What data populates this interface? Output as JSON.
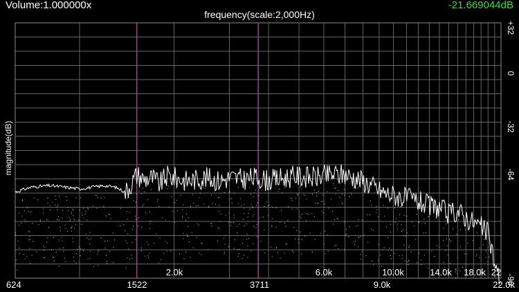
{
  "header": {
    "volume": "Volume:1.000000x",
    "db_readout": "-21.669044dB",
    "freq_title": "frequency(scale:2,000Hz)",
    "magnitude_label": "magnitude(dB)"
  },
  "colors": {
    "background": "#000000",
    "grid": "#8a8a8a",
    "trace": "#ffffff",
    "marker": "#b03a9a",
    "db_readout": "#3fdc3f"
  },
  "y_axis": {
    "labels": [
      "+32",
      "0",
      "-32",
      "-64",
      "-96"
    ]
  },
  "inner_freq_labels": [
    "2.0k",
    "6.0k",
    "10.0k",
    "14.0k",
    "18.0k",
    "22"
  ],
  "bottom_freq_labels": [
    "624",
    "1522",
    "3711",
    "9.0k",
    "22.0k"
  ],
  "markers": {
    "count": 2
  },
  "chart_data": {
    "type": "line",
    "series": [
      {
        "x": [
          624,
          700,
          800,
          900,
          1000,
          1100,
          1200,
          1300,
          1400,
          1522,
          1600,
          1700,
          1800,
          1900,
          2000,
          2200,
          2500,
          2800,
          3000,
          3300,
          3711,
          4000,
          4500,
          5000,
          5500,
          6000,
          6500,
          7000,
          7500,
          8000,
          8500,
          9000,
          9500,
          10000,
          11000,
          12000,
          13000,
          14000,
          15000,
          16000,
          17000,
          18000,
          19000,
          20000,
          20500,
          21000,
          21500,
          22000
        ],
        "y": [
          -66,
          -63,
          -62,
          -63,
          -64,
          -63,
          -62,
          -63,
          -66,
          -55,
          -58,
          -57,
          -61,
          -56,
          -57,
          -59,
          -57,
          -59,
          -57,
          -58,
          -57,
          -59,
          -57,
          -56,
          -57,
          -56,
          -55,
          -55,
          -57,
          -59,
          -62,
          -65,
          -67,
          -68,
          -70,
          -72,
          -75,
          -76,
          -80,
          -78,
          -82,
          -85,
          -88,
          -92,
          -100,
          -112,
          -118,
          -120
        ]
      }
    ]
  }
}
